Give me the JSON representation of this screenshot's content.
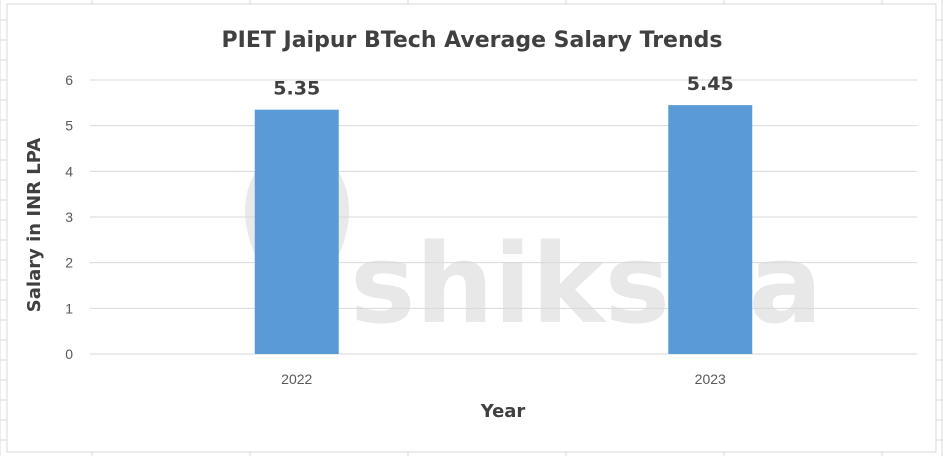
{
  "watermark": {
    "text": "shiksha",
    "icon": "shiksha-logo-icon"
  },
  "chart_data": {
    "type": "bar",
    "title": "PIET Jaipur BTech Average Salary Trends",
    "xlabel": "Year",
    "ylabel": "Salary in INR LPA",
    "categories": [
      "2022",
      "2023"
    ],
    "values": [
      5.35,
      5.45
    ],
    "data_labels": [
      "5.35",
      "5.45"
    ],
    "yticks": [
      "0",
      "1",
      "2",
      "3",
      "4",
      "5",
      "6"
    ],
    "ylim": [
      0,
      6
    ],
    "grid": true,
    "legend": "none",
    "bar_color": "#5b9bd5"
  }
}
